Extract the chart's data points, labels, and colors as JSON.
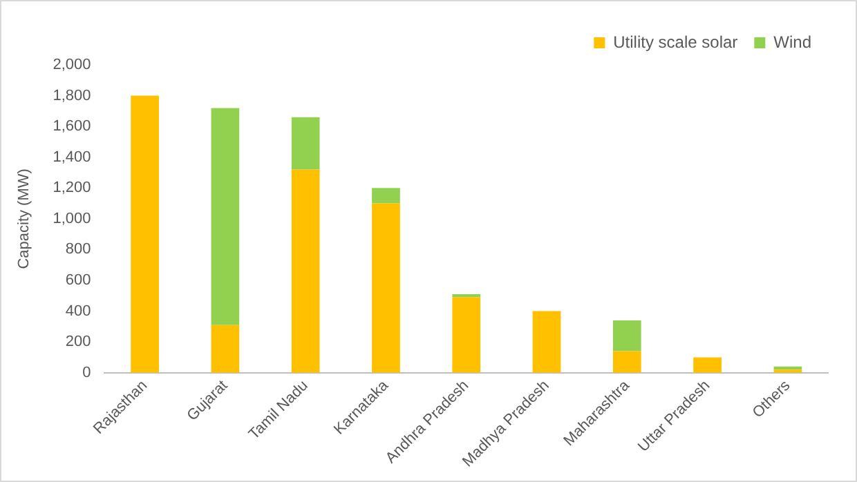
{
  "chart_data": {
    "type": "bar",
    "stacked": true,
    "ylabel": "Capacity (MW)",
    "categories": [
      "Rajasthan",
      "Gujarat",
      "Tamil Nadu",
      "Karnataka",
      "Andhra Pradesh",
      "Madhya Pradesh",
      "Maharashtra",
      "Uttar Pradesh",
      "Others"
    ],
    "series": [
      {
        "name": "Utility scale solar",
        "color": "#ffc000",
        "values": [
          1800,
          310,
          1320,
          1100,
          490,
          400,
          140,
          100,
          20
        ]
      },
      {
        "name": "Wind",
        "color": "#92d050",
        "values": [
          0,
          1410,
          340,
          100,
          20,
          0,
          200,
          0,
          20
        ]
      }
    ],
    "ylim": [
      0,
      2000
    ],
    "yticks": [
      0,
      200,
      400,
      600,
      800,
      {
        "value": 1000,
        "label": "1,000"
      },
      {
        "value": 1200,
        "label": "1,200"
      },
      {
        "value": 1400,
        "label": "1,400"
      },
      {
        "value": 1600,
        "label": "1,600"
      },
      {
        "value": 1800,
        "label": "1,800"
      },
      {
        "value": 2000,
        "label": "2,000"
      }
    ],
    "grid": false,
    "legend": "top right"
  }
}
